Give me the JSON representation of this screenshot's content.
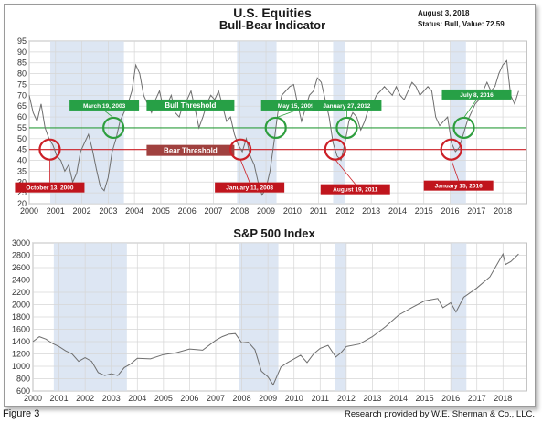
{
  "figure_label": "Figure 3",
  "credit": "Research provided by W.E. Sherman & Co., LLC.",
  "chart_data": [
    {
      "type": "line",
      "title": "U.S. Equities",
      "subtitle": "Bull-Bear Indicator",
      "status_date": "August 3, 2018",
      "status_text": "Status: Bull, Value: 72.59",
      "xlabel": "",
      "ylabel": "",
      "xlim": [
        2000,
        2018.9
      ],
      "ylim": [
        20,
        95
      ],
      "x_ticks": [
        "2000",
        "2001",
        "2002",
        "2003",
        "2004",
        "2005",
        "2006",
        "2007",
        "2008",
        "2009",
        "2010",
        "2011",
        "2012",
        "2013",
        "2014",
        "2015",
        "2016",
        "2017",
        "2018"
      ],
      "y_ticks": [
        20,
        25,
        30,
        35,
        40,
        45,
        50,
        55,
        60,
        65,
        70,
        75,
        80,
        85,
        90,
        95
      ],
      "grid": true,
      "bull_threshold": 55,
      "bull_threshold_label": "Bull Threshold",
      "bear_threshold": 45,
      "bear_threshold_label": "Bear Threshold",
      "shaded_periods": [
        [
          2000.8,
          2003.6
        ],
        [
          2007.9,
          2009.4
        ],
        [
          2011.55,
          2012.0
        ],
        [
          2016.0,
          2016.6
        ]
      ],
      "x": [
        2000,
        2000.15,
        2000.3,
        2000.45,
        2000.6,
        2000.75,
        2000.9,
        2001.05,
        2001.2,
        2001.35,
        2001.5,
        2001.65,
        2001.8,
        2001.95,
        2002.1,
        2002.25,
        2002.4,
        2002.55,
        2002.7,
        2002.85,
        2003.0,
        2003.15,
        2003.3,
        2003.45,
        2003.6,
        2003.75,
        2003.9,
        2004.05,
        2004.2,
        2004.35,
        2004.5,
        2004.65,
        2004.8,
        2004.95,
        2005.1,
        2005.25,
        2005.4,
        2005.55,
        2005.7,
        2005.85,
        2006.0,
        2006.15,
        2006.3,
        2006.45,
        2006.6,
        2006.75,
        2006.9,
        2007.05,
        2007.2,
        2007.35,
        2007.5,
        2007.65,
        2007.8,
        2007.95,
        2008.1,
        2008.25,
        2008.4,
        2008.55,
        2008.7,
        2008.85,
        2009.0,
        2009.15,
        2009.3,
        2009.45,
        2009.6,
        2009.75,
        2009.9,
        2010.05,
        2010.2,
        2010.35,
        2010.5,
        2010.65,
        2010.8,
        2010.95,
        2011.1,
        2011.25,
        2011.4,
        2011.55,
        2011.7,
        2011.85,
        2012.0,
        2012.15,
        2012.3,
        2012.45,
        2012.6,
        2012.75,
        2012.9,
        2013.05,
        2013.2,
        2013.35,
        2013.5,
        2013.65,
        2013.8,
        2013.95,
        2014.1,
        2014.25,
        2014.4,
        2014.55,
        2014.7,
        2014.85,
        2015.0,
        2015.15,
        2015.3,
        2015.45,
        2015.6,
        2015.75,
        2015.9,
        2016.05,
        2016.2,
        2016.35,
        2016.5,
        2016.65,
        2016.8,
        2016.95,
        2017.1,
        2017.25,
        2017.4,
        2017.55,
        2017.7,
        2017.85,
        2018.0,
        2018.15,
        2018.3,
        2018.45,
        2018.6
      ],
      "values": [
        70,
        62,
        58,
        66,
        55,
        50,
        47,
        42,
        40,
        35,
        38,
        30,
        34,
        44,
        48,
        52,
        45,
        36,
        28,
        26,
        32,
        44,
        50,
        58,
        62,
        66,
        72,
        84,
        80,
        70,
        66,
        62,
        68,
        72,
        64,
        66,
        70,
        62,
        60,
        66,
        68,
        72,
        64,
        55,
        60,
        66,
        70,
        68,
        72,
        65,
        58,
        60,
        52,
        47,
        44,
        50,
        42,
        38,
        30,
        24,
        27,
        35,
        48,
        62,
        70,
        72,
        74,
        75,
        66,
        58,
        64,
        70,
        72,
        78,
        76,
        68,
        60,
        48,
        42,
        40,
        48,
        58,
        62,
        60,
        54,
        58,
        64,
        66,
        70,
        72,
        74,
        72,
        70,
        74,
        70,
        68,
        72,
        76,
        74,
        70,
        72,
        74,
        72,
        60,
        56,
        58,
        60,
        48,
        44,
        46,
        52,
        58,
        62,
        66,
        68,
        72,
        76,
        72,
        74,
        80,
        84,
        86,
        70,
        66,
        72
      ]
    },
    {
      "type": "line",
      "title": "S&P 500 Index",
      "xlabel": "",
      "ylabel": "",
      "xlim": [
        2000,
        2018.9
      ],
      "ylim": [
        600,
        3000
      ],
      "x_ticks": [
        "2000",
        "2001",
        "2002",
        "2003",
        "2004",
        "2005",
        "2006",
        "2007",
        "2008",
        "2009",
        "2010",
        "2011",
        "2012",
        "2013",
        "2014",
        "2015",
        "2016",
        "2017",
        "2018"
      ],
      "y_ticks": [
        600,
        800,
        1000,
        1200,
        1400,
        1600,
        1800,
        2000,
        2200,
        2400,
        2600,
        2800,
        3000
      ],
      "grid": true,
      "shaded_periods": [
        [
          2000.8,
          2003.6
        ],
        [
          2007.9,
          2009.4
        ],
        [
          2011.55,
          2012.0
        ],
        [
          2016.0,
          2016.6
        ]
      ],
      "x": [
        2000,
        2000.25,
        2000.5,
        2000.75,
        2001.0,
        2001.25,
        2001.5,
        2001.75,
        2002.0,
        2002.25,
        2002.5,
        2002.75,
        2003.0,
        2003.25,
        2003.5,
        2003.75,
        2004.0,
        2004.5,
        2005.0,
        2005.5,
        2006.0,
        2006.5,
        2007.0,
        2007.25,
        2007.5,
        2007.75,
        2008.0,
        2008.25,
        2008.5,
        2008.75,
        2009.0,
        2009.2,
        2009.5,
        2009.75,
        2010.0,
        2010.25,
        2010.5,
        2010.75,
        2011.0,
        2011.3,
        2011.6,
        2011.8,
        2012.0,
        2012.5,
        2013.0,
        2013.5,
        2014.0,
        2014.5,
        2015.0,
        2015.5,
        2015.7,
        2016.0,
        2016.2,
        2016.5,
        2017.0,
        2017.5,
        2018.0,
        2018.1,
        2018.3,
        2018.6
      ],
      "values": [
        1400,
        1480,
        1440,
        1370,
        1320,
        1250,
        1200,
        1080,
        1140,
        1080,
        900,
        850,
        880,
        850,
        980,
        1040,
        1130,
        1120,
        1190,
        1220,
        1280,
        1260,
        1420,
        1480,
        1520,
        1530,
        1380,
        1390,
        1270,
        920,
        830,
        700,
        990,
        1060,
        1120,
        1180,
        1060,
        1200,
        1290,
        1340,
        1150,
        1220,
        1320,
        1360,
        1480,
        1640,
        1830,
        1950,
        2060,
        2100,
        1950,
        2030,
        1880,
        2120,
        2270,
        2450,
        2820,
        2650,
        2700,
        2820
      ]
    }
  ],
  "annotations": [
    {
      "text": "October 13, 2000",
      "kind": "bear",
      "x": 2000.78,
      "y": 45
    },
    {
      "text": "March 19, 2003",
      "kind": "bull",
      "x": 2003.2,
      "y": 55
    },
    {
      "text": "January 11, 2008",
      "kind": "bear",
      "x": 2008.03,
      "y": 45
    },
    {
      "text": "May 15, 2009",
      "kind": "bull",
      "x": 2009.37,
      "y": 55
    },
    {
      "text": "August 19, 2011",
      "kind": "bear",
      "x": 2011.63,
      "y": 45
    },
    {
      "text": "January 27, 2012",
      "kind": "bull",
      "x": 2012.07,
      "y": 55
    },
    {
      "text": "January 15, 2016",
      "kind": "bear",
      "x": 2016.04,
      "y": 45
    },
    {
      "text": "July 8, 2016",
      "kind": "bull",
      "x": 2016.52,
      "y": 55
    }
  ],
  "colors": {
    "series": "#6e6e6e",
    "shade": "#dde6f3",
    "grid": "#d6d6d6",
    "bull": "#2e9e3e",
    "bull_label": "#27a046",
    "bear": "#cc2027",
    "bear_label": "#c0151d",
    "threshold_bear_label": "#a0413f"
  }
}
